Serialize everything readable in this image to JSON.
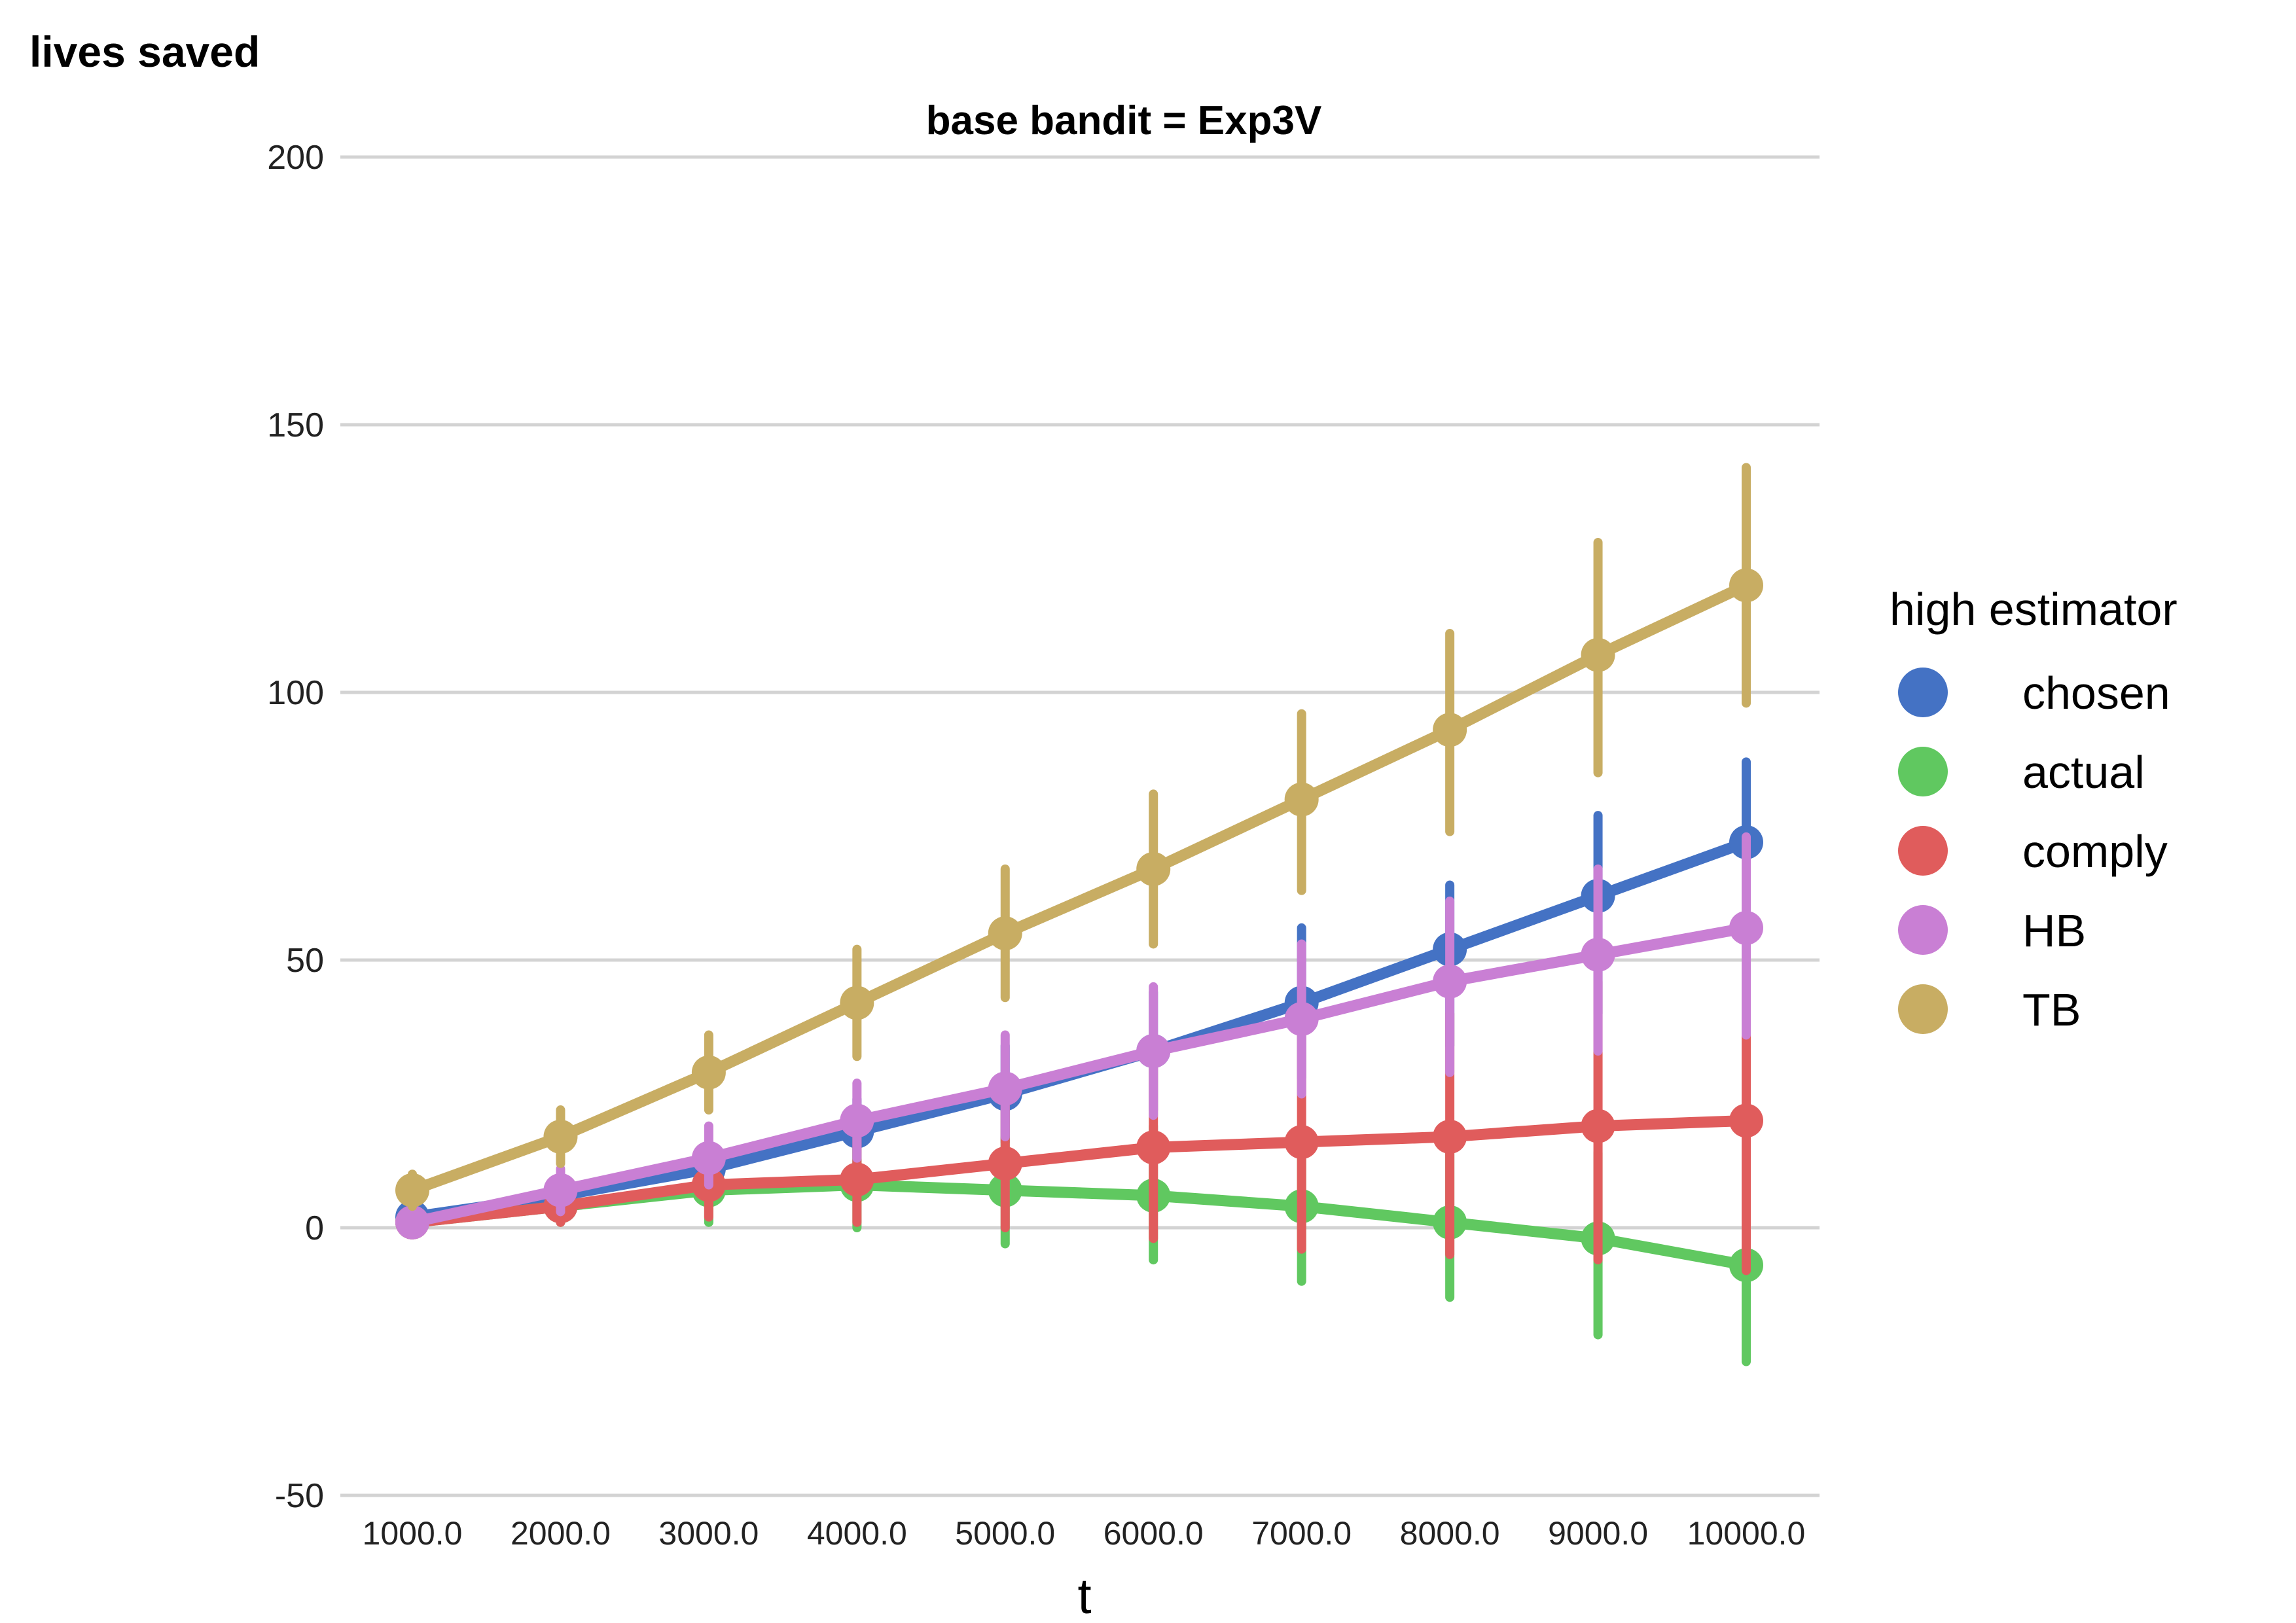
{
  "chart_data": {
    "type": "line",
    "title": "base bandit = Exp3V",
    "ylabel": "lives saved",
    "xlabel": "t",
    "ylim": [
      -50,
      200
    ],
    "yticks": [
      200,
      150,
      100,
      50,
      0,
      -50
    ],
    "grid": true,
    "error_bars": true,
    "categories": [
      "1000.0",
      "2000.0",
      "3000.0",
      "4000.0",
      "5000.0",
      "6000.0",
      "7000.0",
      "8000.0",
      "9000.0",
      "10000.0"
    ],
    "legend": {
      "title": "high estimator",
      "position": "right"
    },
    "series": [
      {
        "name": "chosen",
        "color": "#4472c4",
        "values": [
          2,
          6,
          11,
          18,
          25,
          33,
          42,
          52,
          62,
          72
        ],
        "lower": [
          0,
          3,
          6,
          11,
          16,
          22,
          28,
          34,
          40,
          46
        ],
        "upper": [
          5,
          9,
          16,
          24,
          34,
          44,
          56,
          64,
          77,
          87
        ]
      },
      {
        "name": "actual",
        "color": "#60c860",
        "values": [
          1,
          4,
          7,
          8,
          7,
          6,
          4,
          1,
          -2,
          -7
        ],
        "lower": [
          -1,
          1,
          1,
          0,
          -3,
          -6,
          -10,
          -13,
          -20,
          -25
        ],
        "upper": [
          3,
          7,
          12,
          15,
          17,
          19,
          19,
          16,
          14,
          11
        ]
      },
      {
        "name": "comply",
        "color": "#e05c5c",
        "values": [
          1,
          4,
          8,
          9,
          12,
          15,
          16,
          17,
          19,
          20
        ],
        "lower": [
          -1,
          1,
          2,
          1,
          0,
          -2,
          -4,
          -5,
          -6,
          -8
        ],
        "upper": [
          3,
          7,
          13,
          18,
          24,
          30,
          36,
          40,
          46,
          52
        ]
      },
      {
        "name": "HB",
        "color": "#c97fd4",
        "values": [
          1,
          7,
          13,
          20,
          26,
          33,
          39,
          46,
          51,
          56
        ],
        "lower": [
          0,
          3,
          8,
          13,
          17,
          21,
          25,
          29,
          33,
          36
        ],
        "upper": [
          4,
          11,
          19,
          27,
          36,
          45,
          53,
          61,
          67,
          73
        ]
      },
      {
        "name": "TB",
        "color": "#c8ad63",
        "values": [
          7,
          17,
          29,
          42,
          55,
          67,
          80,
          93,
          107,
          120
        ],
        "lower": [
          4,
          12,
          22,
          32,
          43,
          53,
          63,
          74,
          85,
          98
        ],
        "upper": [
          10,
          22,
          36,
          52,
          67,
          81,
          96,
          111,
          128,
          142
        ]
      }
    ]
  }
}
